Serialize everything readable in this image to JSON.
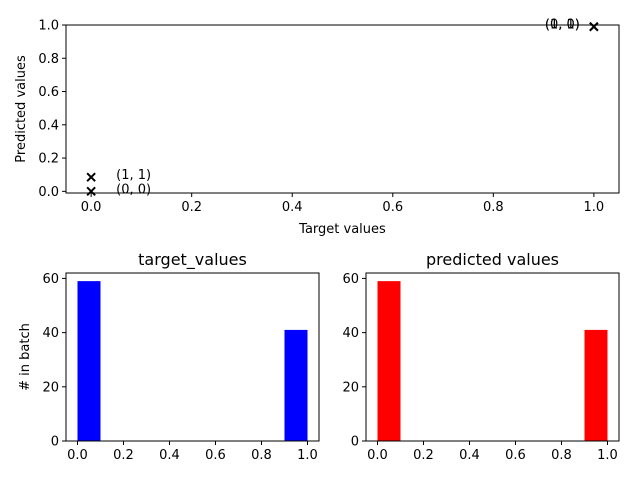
{
  "chart_data": [
    {
      "type": "scatter",
      "xlabel": "Target values",
      "ylabel": "Predicted values",
      "xlim": [
        -0.05,
        1.05
      ],
      "ylim": [
        -0.01,
        1.0
      ],
      "xticks": [
        0.0,
        0.2,
        0.4,
        0.6,
        0.8,
        1.0
      ],
      "yticks": [
        0.0,
        0.2,
        0.4,
        0.6,
        0.8,
        1.0
      ],
      "tick_format": "0.0",
      "grid": false,
      "points": [
        {
          "x": 0.0,
          "y": 0.085,
          "label": "(1, 1)"
        },
        {
          "x": 0.0,
          "y": 0.0,
          "label": "(0, 0)"
        },
        {
          "x": 1.0,
          "y": 0.99,
          "label": "(0, 1)"
        },
        {
          "x": 1.0,
          "y": 0.99,
          "label": "(1, 0)"
        }
      ]
    },
    {
      "type": "bar",
      "title": "target_values",
      "ylabel": "# in batch",
      "xlim": [
        -0.05,
        1.05
      ],
      "ylim": [
        0,
        62
      ],
      "xticks": [
        0.0,
        0.2,
        0.4,
        0.6,
        0.8,
        1.0
      ],
      "yticks": [
        0,
        20,
        40,
        60
      ],
      "grid": false,
      "color": "#0000ff",
      "bins": [
        {
          "start": 0.0,
          "end": 0.1,
          "value": 59
        },
        {
          "start": 0.9,
          "end": 1.0,
          "value": 41
        }
      ]
    },
    {
      "type": "bar",
      "title": "predicted values",
      "ylabel": "",
      "xlim": [
        -0.05,
        1.05
      ],
      "ylim": [
        0,
        62
      ],
      "xticks": [
        0.0,
        0.2,
        0.4,
        0.6,
        0.8,
        1.0
      ],
      "yticks": [
        0,
        20,
        40,
        60
      ],
      "grid": false,
      "color": "#ff0000",
      "bins": [
        {
          "start": 0.0,
          "end": 0.1,
          "value": 59
        },
        {
          "start": 0.9,
          "end": 1.0,
          "value": 41
        }
      ]
    }
  ]
}
